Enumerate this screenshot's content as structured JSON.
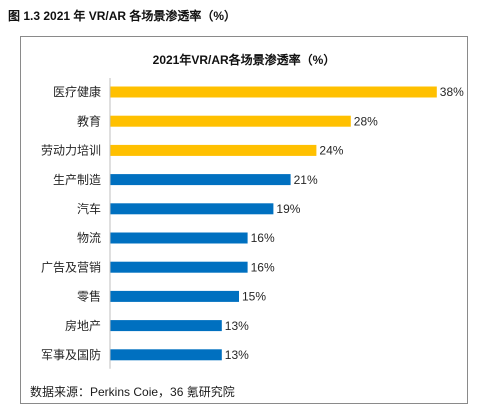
{
  "figure_caption": "图 1.3 2021 年 VR/AR 各场景渗透率（%）",
  "source_note": "数据来源：Perkins Coie，36 氪研究院",
  "chart_data": {
    "type": "bar",
    "orientation": "horizontal",
    "title": "2021年VR/AR各场景渗透率（%）",
    "categories": [
      "医疗健康",
      "教育",
      "劳动力培训",
      "生产制造",
      "汽车",
      "物流",
      "广告及营销",
      "零售",
      "房地产",
      "军事及国防"
    ],
    "values": [
      38,
      28,
      24,
      21,
      19,
      16,
      16,
      15,
      13,
      13
    ],
    "value_labels": [
      "38%",
      "28%",
      "24%",
      "21%",
      "19%",
      "16%",
      "16%",
      "15%",
      "13%",
      "13%"
    ],
    "colors": [
      "#FFC000",
      "#FFC000",
      "#FFC000",
      "#0070C0",
      "#0070C0",
      "#0070C0",
      "#0070C0",
      "#0070C0",
      "#0070C0",
      "#0070C0"
    ],
    "xlim": [
      0,
      40
    ],
    "grid": false,
    "show_legend": false
  }
}
